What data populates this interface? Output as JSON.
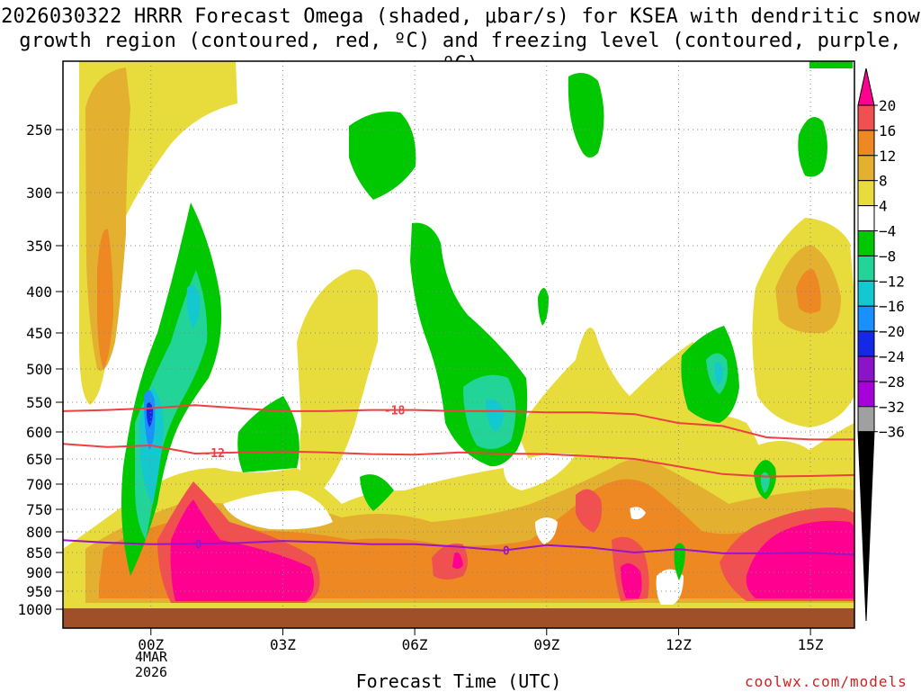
{
  "title_line1": "2026030322 HRRR Forecast Omega (shaded, μbar/s) for KSEA with dendritic snow",
  "title_line2": "growth region (contoured, red, ºC) and freezing level (contoured, purple, ºC)",
  "credit": "coolwx.com/models",
  "chart_data": {
    "type": "heatmap",
    "title": "2026030322 HRRR Forecast Omega (shaded, μbar/s) for KSEA with dendritic snow growth region (contoured, red, ºC) and freezing level (contoured, purple, ºC)",
    "xlabel": "Forecast Time (UTC)",
    "ylabel": "Pressure (hPa)",
    "x_ticks": [
      {
        "hour": 0,
        "label": "00Z"
      },
      {
        "hour": 3,
        "label": "03Z"
      },
      {
        "hour": 6,
        "label": "06Z"
      },
      {
        "hour": 9,
        "label": "09Z"
      },
      {
        "hour": 12,
        "label": "12Z"
      },
      {
        "hour": 15,
        "label": "15Z"
      }
    ],
    "date_label": [
      "4MAR",
      "2026"
    ],
    "xlim": [
      -2,
      16
    ],
    "y_ticks": [
      250,
      300,
      350,
      400,
      450,
      500,
      550,
      600,
      650,
      700,
      750,
      800,
      850,
      900,
      950,
      1000
    ],
    "ylim": [
      200,
      1000
    ],
    "colorbar": {
      "labels": [
        "20",
        "16",
        "12",
        "8",
        "4",
        "−4",
        "−8",
        "−12",
        "−16",
        "−20",
        "−24",
        "−28",
        "−32",
        "−36"
      ],
      "colors": [
        "#ff0090",
        "#f05050",
        "#ee8822",
        "#e4b030",
        "#e8dc3c",
        "#ffffff",
        "#00c800",
        "#22d498",
        "#14c8d0",
        "#1890ff",
        "#1428e6",
        "#8c14c8",
        "#a800d8",
        "#a0a0a0",
        "#000000"
      ]
    },
    "contours": [
      {
        "name": "-18C",
        "label": "-18",
        "color": "#ee4040",
        "points": [
          [
            -2,
            565
          ],
          [
            -1,
            563
          ],
          [
            0,
            560
          ],
          [
            1,
            555
          ],
          [
            2,
            560
          ],
          [
            3,
            565
          ],
          [
            4,
            565
          ],
          [
            5,
            563
          ],
          [
            6,
            563
          ],
          [
            7,
            565
          ],
          [
            8,
            565
          ],
          [
            9,
            567
          ],
          [
            10,
            567
          ],
          [
            11,
            570
          ],
          [
            12,
            585
          ],
          [
            13,
            590
          ],
          [
            14,
            610
          ],
          [
            15,
            614
          ],
          [
            16,
            614
          ]
        ]
      },
      {
        "name": "-12C",
        "label": "-12",
        "color": "#ee4040",
        "points": [
          [
            -2,
            622
          ],
          [
            -1,
            628
          ],
          [
            0,
            625
          ],
          [
            1,
            640
          ],
          [
            2,
            638
          ],
          [
            3,
            636
          ],
          [
            4,
            638
          ],
          [
            5,
            641
          ],
          [
            6,
            642
          ],
          [
            7,
            638
          ],
          [
            8,
            640
          ],
          [
            9,
            641
          ],
          [
            10,
            645
          ],
          [
            11,
            650
          ],
          [
            12,
            665
          ],
          [
            13,
            680
          ],
          [
            14,
            685
          ],
          [
            15,
            684
          ],
          [
            16,
            682
          ]
        ]
      },
      {
        "name": "freezing level",
        "label": "0",
        "color": "#9b14c8",
        "points": [
          [
            -2,
            820
          ],
          [
            -1,
            826
          ],
          [
            0,
            830
          ],
          [
            1,
            829
          ],
          [
            2,
            827
          ],
          [
            3,
            822
          ],
          [
            4,
            825
          ],
          [
            5,
            830
          ],
          [
            6,
            830
          ],
          [
            7,
            836
          ],
          [
            8,
            845
          ],
          [
            9,
            832
          ],
          [
            10,
            838
          ],
          [
            11,
            850
          ],
          [
            12,
            842
          ],
          [
            13,
            852
          ],
          [
            14,
            852
          ],
          [
            15,
            851
          ],
          [
            16,
            855
          ]
        ]
      }
    ],
    "regions": [
      {
        "band": "4 to 8",
        "color": "#e8dc3c",
        "approx": "broad rising layer 1000-700 hPa all hours; upper plumes near 00Z 210-450 hPa, 03Z-05Z 380-600 hPa, 09Z-12Z 350-600 hPa, 14Z-15Z 260-450 hPa"
      },
      {
        "band": "8 to 16",
        "color": "#ee8822",
        "approx": "near 23Z 300-500 hPa, 15Z 380-420 hPa, low levels 750-950 hPa"
      },
      {
        "band": "20 and above",
        "color": "#ff0090",
        "approx": "00Z-02Z 650-950 hPa, 07Z 880 hPa, 10Z-11Z 840-950 hPa, 14Z-16Z 780-930 hPa"
      },
      {
        "band": "-4 to -8",
        "color": "#00c800",
        "approx": "00Z-01Z 320-640 hPa, 06Z-08Z 350-650 hPa, 05Z 260-300 hPa, 10Z 200-270 hPa, 12Z-13Z 380-580 hPa, 14Z 270-300 hPa, 14Z 680-700 hPa"
      },
      {
        "band": "-8 to -16",
        "color": "#22d498",
        "approx": "00Z 400-580 hPa, 08Z 540-600 hPa, 13Z 470-520 hPa"
      },
      {
        "band": "-16 to -24",
        "color": "#1890ff",
        "approx": "00Z 550-600 hPa"
      }
    ]
  }
}
